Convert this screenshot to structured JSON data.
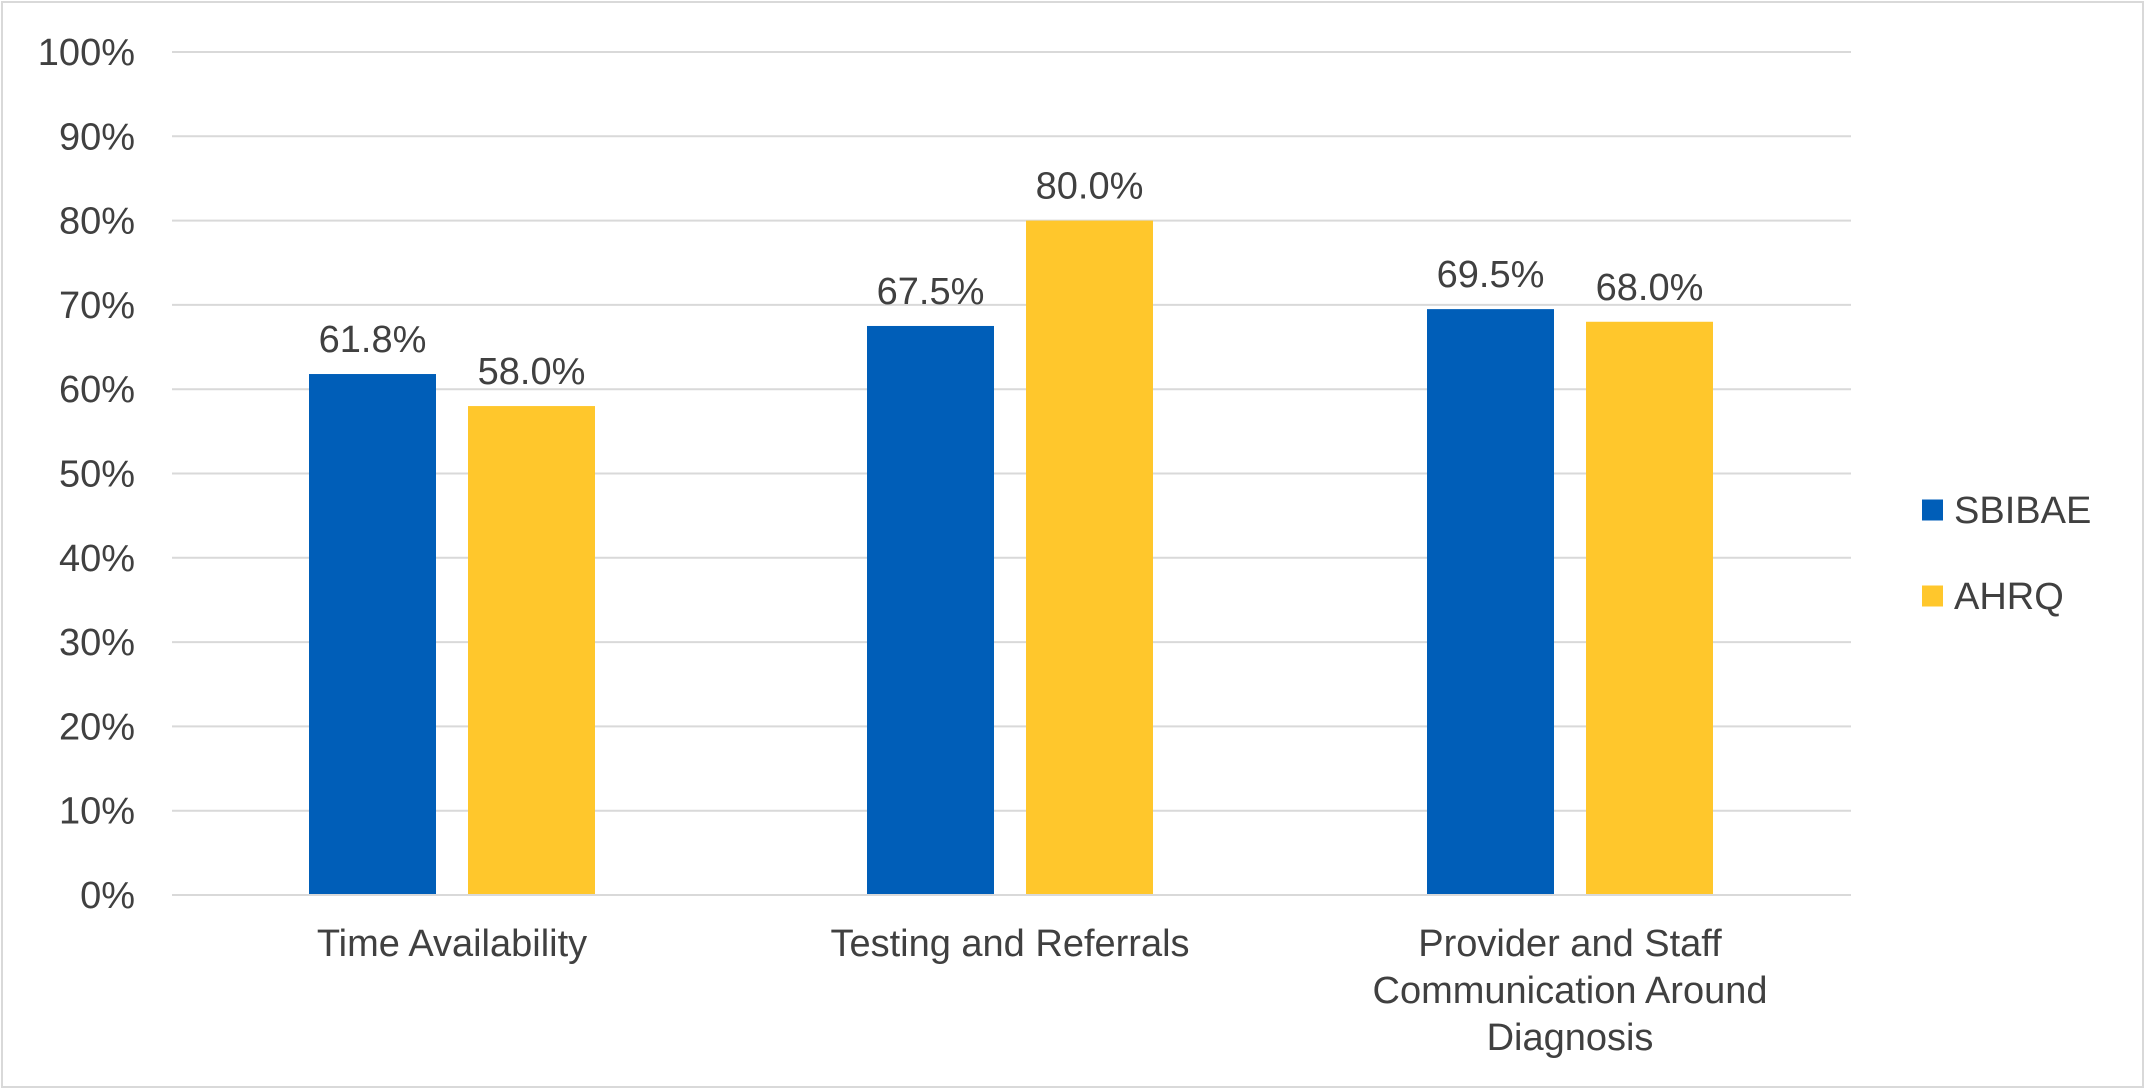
{
  "chart_data": {
    "type": "bar",
    "title": "",
    "xlabel": "",
    "ylabel": "",
    "ylim": [
      0,
      100
    ],
    "ytick_step": 10,
    "ytick_suffix": "%",
    "grid": true,
    "legend_position": "right",
    "categories": [
      [
        "Time Availability"
      ],
      [
        "Testing and Referrals"
      ],
      [
        "Provider and Staff",
        "Communication Around",
        "Diagnosis"
      ]
    ],
    "series": [
      {
        "name": "SBIBAE",
        "color": "#005EB8",
        "values": [
          61.8,
          67.5,
          69.5
        ],
        "labels": [
          "61.8%",
          "67.5%",
          "69.5%"
        ]
      },
      {
        "name": "AHRQ",
        "color": "#FFC72C",
        "values": [
          58.0,
          80.0,
          68.0
        ],
        "labels": [
          "58.0%",
          "80.0%",
          "68.0%"
        ]
      }
    ]
  }
}
